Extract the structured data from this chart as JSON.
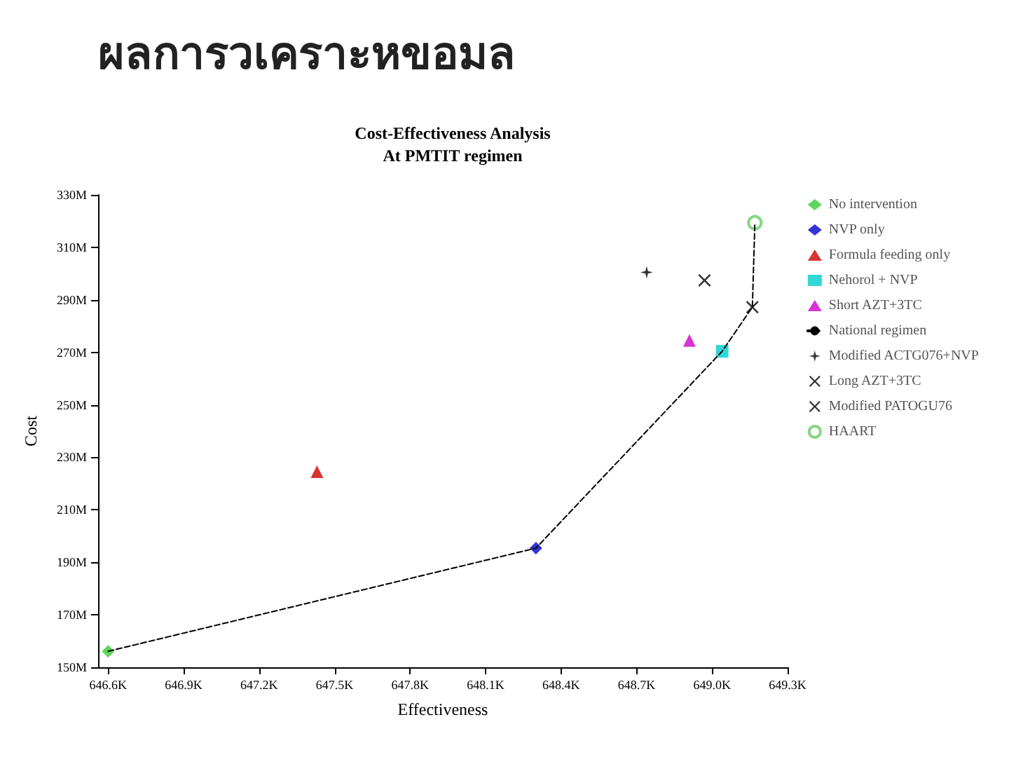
{
  "chart_data": {
    "type": "scatter",
    "title": "Cost-Effectiveness Analysis",
    "subtitle": "At PMTIT regimen",
    "xlabel": "Effectiveness",
    "ylabel": "Cost",
    "annotations": [
      "ผลการวเคราะหขอมล"
    ],
    "xlim": [
      646.56,
      649.3
    ],
    "xticks": [
      {
        "value": 646.6,
        "label": "646.6K"
      },
      {
        "value": 646.9,
        "label": "646.9K"
      },
      {
        "value": 647.2,
        "label": "647.2K"
      },
      {
        "value": 647.5,
        "label": "647.5K"
      },
      {
        "value": 647.8,
        "label": "647.8K"
      },
      {
        "value": 648.1,
        "label": "648.1K"
      },
      {
        "value": 648.4,
        "label": "648.4K"
      },
      {
        "value": 648.7,
        "label": "648.7K"
      },
      {
        "value": 649.0,
        "label": "649.0K"
      },
      {
        "value": 649.3,
        "label": "649.3K"
      }
    ],
    "ylim": [
      150,
      330
    ],
    "yticks": [
      {
        "value": 150,
        "label": "150M"
      },
      {
        "value": 170,
        "label": "170M"
      },
      {
        "value": 190,
        "label": "190M"
      },
      {
        "value": 210,
        "label": "210M"
      },
      {
        "value": 230,
        "label": "230M"
      },
      {
        "value": 250,
        "label": "250M"
      },
      {
        "value": 270,
        "label": "270M"
      },
      {
        "value": 290,
        "label": "290M"
      },
      {
        "value": 310,
        "label": "310M"
      },
      {
        "value": 330,
        "label": "330M"
      }
    ],
    "grid": false,
    "legend": "right",
    "series": [
      {
        "name": "No intervention",
        "color": "#33cc33",
        "marker": "diamond",
        "x": [
          646.6
        ],
        "values": [
          156.1
        ]
      },
      {
        "name": "NVP only",
        "color": "#0000cc",
        "marker": "diamond",
        "x": [
          648.3
        ],
        "values": [
          195.4
        ]
      },
      {
        "name": "Formula feeding only",
        "color": "#cc0000",
        "marker": "triangle",
        "x": [
          647.43
        ],
        "values": [
          224.5
        ]
      },
      {
        "name": "Nehorol + NVP",
        "color": "#00cccc",
        "marker": "square",
        "x": [
          649.04
        ],
        "values": [
          270.4
        ]
      },
      {
        "name": "Short AZT+3TC",
        "color": "#cc00cc",
        "marker": "triangle",
        "x": [
          648.91
        ],
        "values": [
          274.5
        ]
      },
      {
        "name": "National regimen",
        "type": "line",
        "color": "#000000",
        "line_style": "dashed",
        "marker": "none",
        "x": [
          646.6,
          648.3,
          649.04,
          649.16,
          649.17
        ],
        "values": [
          156.1,
          195.4,
          270.4,
          287.2,
          319.4
        ]
      },
      {
        "name": "Modified ACTG076+NVP",
        "color": "#000000",
        "marker": "star",
        "x": [
          648.74
        ],
        "values": [
          300.5
        ]
      },
      {
        "name": "Long AZT+3TC",
        "color": "#000000",
        "marker": "cross",
        "x": [
          648.97
        ],
        "values": [
          297.4
        ]
      },
      {
        "name": "Modified PATOGU76",
        "color": "#000000",
        "marker": "cross",
        "x": [
          649.16
        ],
        "values": [
          287.2
        ]
      },
      {
        "name": "HAART",
        "color": "#66cc66",
        "marker": "circle",
        "x": [
          649.17
        ],
        "values": [
          319.4
        ]
      }
    ]
  }
}
